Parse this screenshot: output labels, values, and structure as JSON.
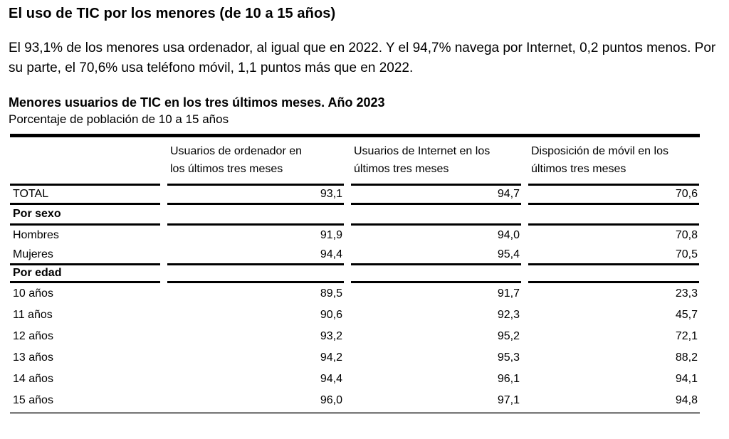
{
  "page": {
    "title": "El uso de TIC por los menores (de 10 a 15 años)",
    "intro": "El 93,1% de los menores usa ordenador, al igual que en 2022. Y el 94,7% navega por Internet, 0,2 puntos menos. Por su parte, el 70,6% usa teléfono móvil, 1,1 puntos más que en 2022."
  },
  "table": {
    "title": "Menores usuarios de TIC en los tres últimos meses. Año 2023",
    "subtitle": "Porcentaje de población de 10 a 15 años",
    "columns": [
      {
        "line1": "Usuarios de ordenador en",
        "line2": "los últimos tres meses"
      },
      {
        "line1": "Usuarios de Internet en los",
        "line2": "últimos tres meses"
      },
      {
        "line1": "Disposición de móvil en los",
        "line2": "últimos tres meses"
      }
    ],
    "rows": [
      {
        "type": "data",
        "label": "TOTAL",
        "values": [
          "93,1",
          "94,7",
          "70,6"
        ]
      },
      {
        "type": "section",
        "label": "Por sexo",
        "values": [
          "",
          "",
          ""
        ]
      },
      {
        "type": "data",
        "label": "Hombres",
        "values": [
          "91,9",
          "94,0",
          "70,8"
        ]
      },
      {
        "type": "data",
        "label": "Mujeres",
        "values": [
          "94,4",
          "95,4",
          "70,5"
        ]
      },
      {
        "type": "section",
        "label": "Por edad",
        "values": [
          "",
          "",
          ""
        ]
      },
      {
        "type": "data",
        "label": "10 años",
        "values": [
          "89,5",
          "91,7",
          "23,3"
        ]
      },
      {
        "type": "data",
        "label": "11 años",
        "values": [
          "90,6",
          "92,3",
          "45,7"
        ]
      },
      {
        "type": "data",
        "label": "12 años",
        "values": [
          "93,2",
          "95,2",
          "72,1"
        ]
      },
      {
        "type": "data",
        "label": "13 años",
        "values": [
          "94,2",
          "95,3",
          "88,2"
        ]
      },
      {
        "type": "data",
        "label": "14 años",
        "values": [
          "94,4",
          "96,1",
          "94,1"
        ]
      },
      {
        "type": "data",
        "label": "15 años",
        "values": [
          "96,0",
          "97,1",
          "94,8"
        ]
      }
    ]
  },
  "chart_data": {
    "type": "table",
    "title": "Menores usuarios de TIC en los tres últimos meses. Año 2023",
    "subtitle": "Porcentaje de población de 10 a 15 años",
    "columns": [
      "Usuarios de ordenador en los últimos tres meses",
      "Usuarios de Internet en los últimos tres meses",
      "Disposición de móvil en los últimos tres meses"
    ],
    "categories": [
      "TOTAL",
      "Hombres",
      "Mujeres",
      "10 años",
      "11 años",
      "12 años",
      "13 años",
      "14 años",
      "15 años"
    ],
    "series": [
      {
        "name": "Usuarios de ordenador en los últimos tres meses",
        "values": [
          93.1,
          91.9,
          94.4,
          89.5,
          90.6,
          93.2,
          94.2,
          94.4,
          96.0
        ]
      },
      {
        "name": "Usuarios de Internet en los últimos tres meses",
        "values": [
          94.7,
          94.0,
          95.4,
          91.7,
          92.3,
          95.2,
          95.3,
          96.1,
          97.1
        ]
      },
      {
        "name": "Disposición de móvil en los últimos tres meses",
        "values": [
          70.6,
          70.8,
          70.5,
          23.3,
          45.7,
          72.1,
          88.2,
          94.1,
          94.8
        ]
      }
    ],
    "groups": {
      "Por sexo": [
        "Hombres",
        "Mujeres"
      ],
      "Por edad": [
        "10 años",
        "11 años",
        "12 años",
        "13 años",
        "14 años",
        "15 años"
      ]
    }
  },
  "colors": {
    "text": "#000000",
    "rule_black": "#000000",
    "rule_gray": "#8a8a8a",
    "background": "#ffffff"
  }
}
